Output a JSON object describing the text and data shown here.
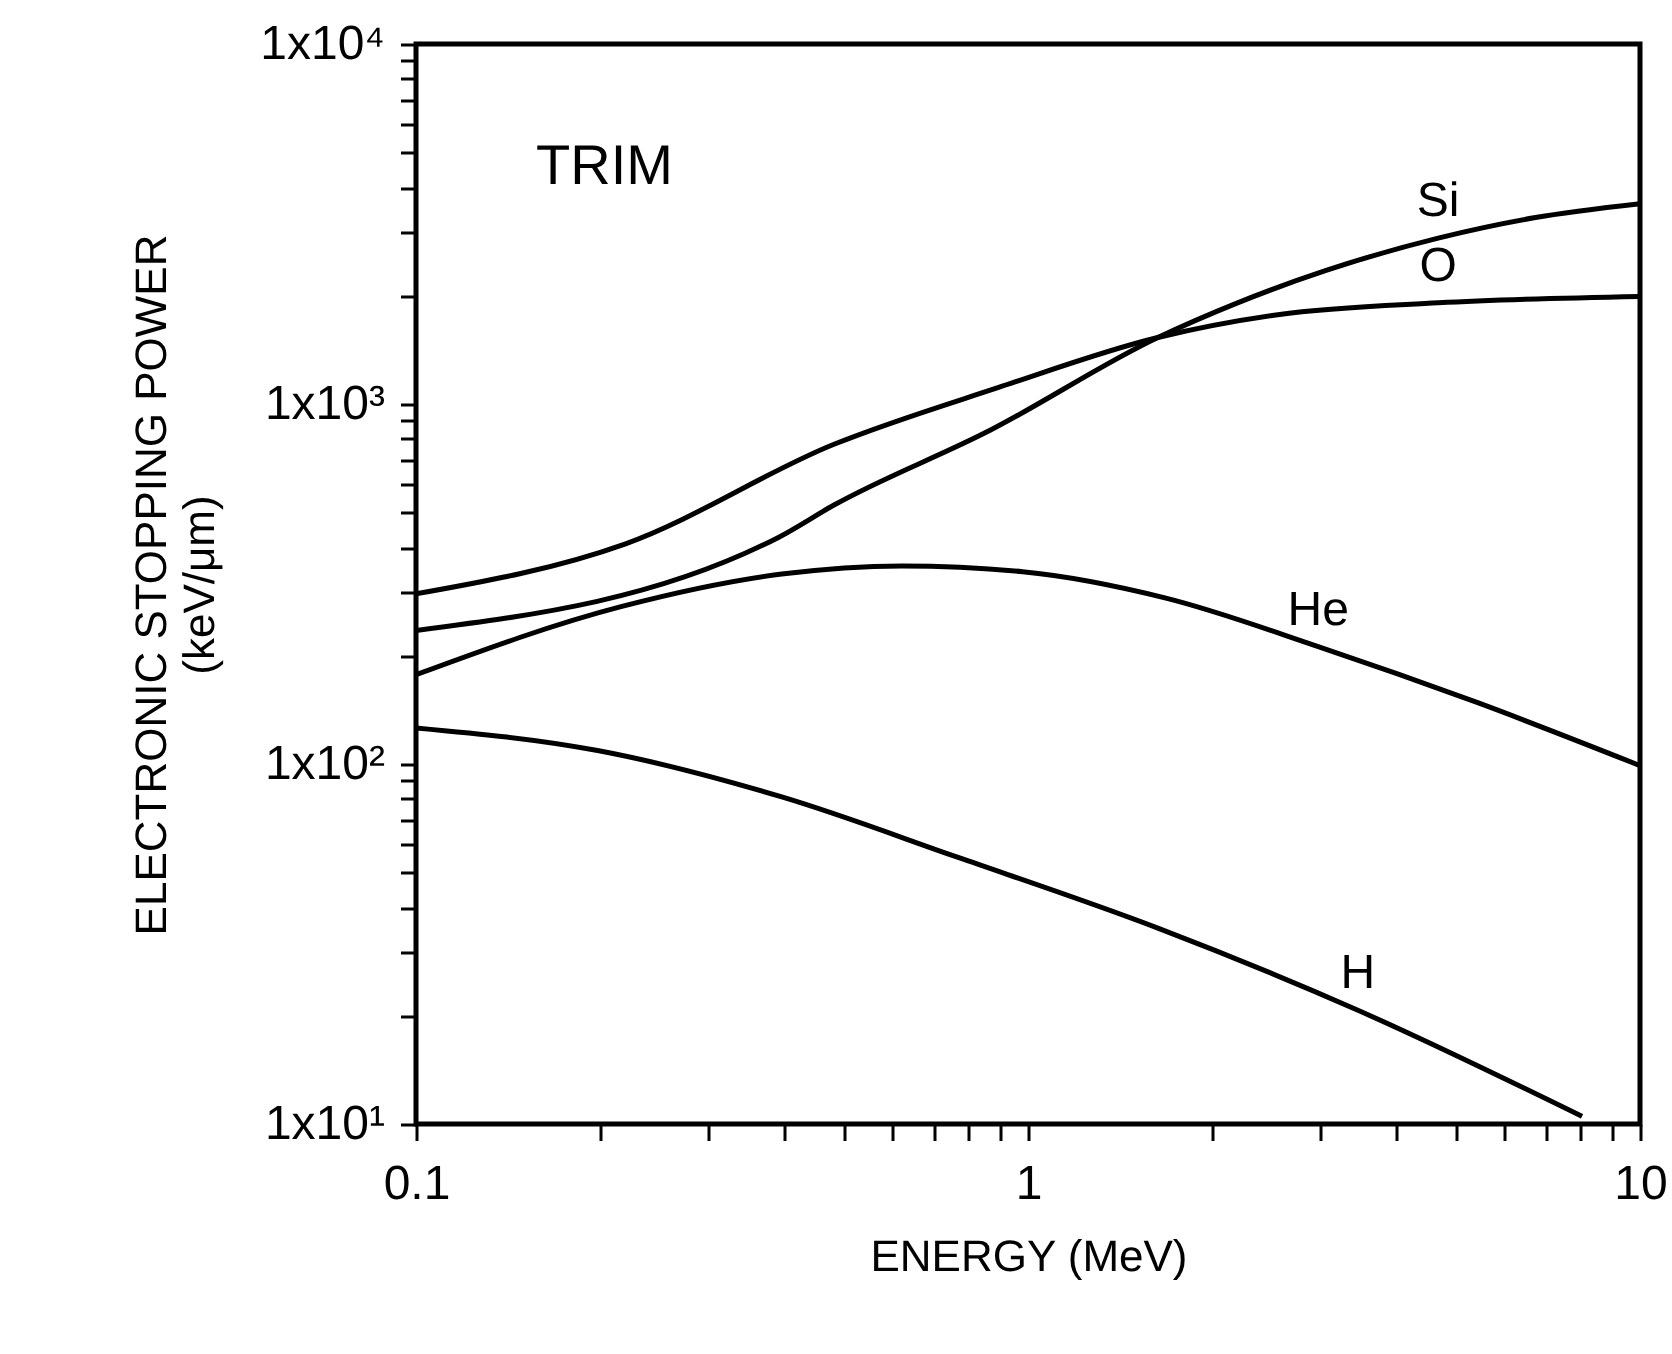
{
  "chart_data": {
    "type": "line",
    "xlabel": "ENERGY (MeV)",
    "ylabel": "ELECTRONIC STOPPING POWER (keV/μm)",
    "log": "xy",
    "grid": false,
    "legend": false,
    "marker": "none",
    "line_style": "solid",
    "annotations": [
      "TRIM"
    ],
    "xlim": [
      0.1,
      10
    ],
    "ylim": [
      10,
      10000
    ],
    "xticks": [
      0.1,
      {
        "value": 0.2,
        "label": null
      },
      {
        "value": 0.3,
        "label": null
      },
      {
        "value": 0.4,
        "label": null
      },
      {
        "value": 0.5,
        "label": null
      },
      {
        "value": 0.6,
        "label": null
      },
      {
        "value": 0.7,
        "label": null
      },
      {
        "value": 0.8,
        "label": null
      },
      {
        "value": 0.9,
        "label": null
      },
      1,
      {
        "value": 2,
        "label": null
      },
      {
        "value": 3,
        "label": null
      },
      {
        "value": 4,
        "label": null
      },
      {
        "value": 5,
        "label": null
      },
      {
        "value": 6,
        "label": null
      },
      {
        "value": 7,
        "label": null
      },
      {
        "value": 8,
        "label": null
      },
      {
        "value": 9,
        "label": null
      },
      10
    ],
    "yticks": [
      {
        "value": 10,
        "label": "1x10¹"
      },
      {
        "value": 20,
        "label": null
      },
      {
        "value": 30,
        "label": null
      },
      {
        "value": 40,
        "label": null
      },
      {
        "value": 50,
        "label": null
      },
      {
        "value": 60,
        "label": null
      },
      {
        "value": 70,
        "label": null
      },
      {
        "value": 80,
        "label": null
      },
      {
        "value": 90,
        "label": null
      },
      {
        "value": 100,
        "label": "1x10²"
      },
      {
        "value": 200,
        "label": null
      },
      {
        "value": 300,
        "label": null
      },
      {
        "value": 400,
        "label": null
      },
      {
        "value": 500,
        "label": null
      },
      {
        "value": 600,
        "label": null
      },
      {
        "value": 700,
        "label": null
      },
      {
        "value": 800,
        "label": null
      },
      {
        "value": 900,
        "label": null
      },
      {
        "value": 1000,
        "label": "1x10³"
      },
      {
        "value": 2000,
        "label": null
      },
      {
        "value": 3000,
        "label": null
      },
      {
        "value": 4000,
        "label": null
      },
      {
        "value": 5000,
        "label": null
      },
      {
        "value": 6000,
        "label": null
      },
      {
        "value": 7000,
        "label": null
      },
      {
        "value": 8000,
        "label": null
      },
      {
        "value": 9000,
        "label": null
      },
      {
        "value": 10000,
        "label": "1x10⁴"
      }
    ],
    "series": [
      {
        "name": "Si",
        "color": "#000000",
        "x": [
          0.1,
          0.391,
          0.482,
          0.867,
          1.63,
          2.2,
          3.07,
          4.68,
          6.71,
          10
        ],
        "values": [
          235,
          426,
          524,
          845,
          1530,
          1910,
          2350,
          2890,
          3290,
          3600
        ]
      },
      {
        "name": "O",
        "color": "#000000",
        "x": [
          0.1,
          0.22,
          0.482,
          0.893,
          1.63,
          2.56,
          4.68,
          10
        ],
        "values": [
          297,
          409,
          773,
          1110,
          1530,
          1770,
          1910,
          1990
        ]
      },
      {
        "name": "He",
        "color": "#000000",
        "x": [
          0.1,
          0.217,
          0.396,
          0.622,
          0.98,
          1.68,
          2.98,
          5.43,
          10
        ],
        "values": [
          177,
          274,
          337,
          355,
          342,
          289,
          212,
          148,
          99
        ]
      },
      {
        "name": "H",
        "color": "#000000",
        "x": [
          0.1,
          0.198,
          0.396,
          0.769,
          1.63,
          3.46,
          8.04
        ],
        "values": [
          126,
          109,
          81,
          55,
          35,
          20.7,
          10.5
        ]
      }
    ]
  }
}
